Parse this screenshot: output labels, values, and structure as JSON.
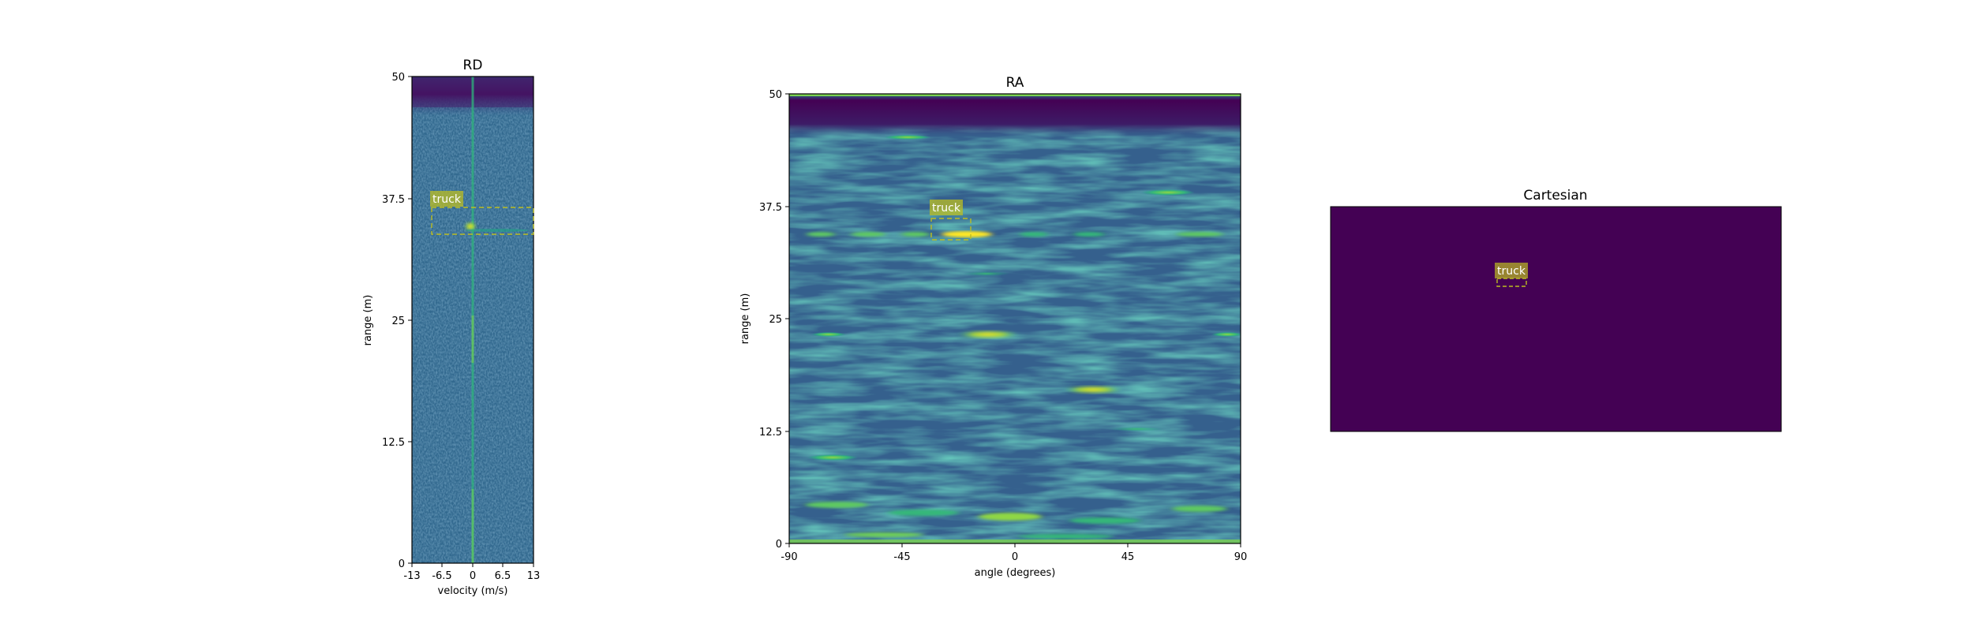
{
  "chart_data": [
    {
      "type": "heatmap",
      "title": "RD",
      "xlabel": "velocity (m/s)",
      "ylabel": "range (m)",
      "xlim": [
        -13,
        13
      ],
      "ylim": [
        0,
        50
      ],
      "xticks": [
        "-13",
        "-6.5",
        "0",
        "6.5",
        "13"
      ],
      "yticks": [
        "0",
        "12.5",
        "25",
        "37.5",
        "50"
      ],
      "colormap": "viridis",
      "annotations": [
        {
          "label": "truck",
          "x0": -8.8,
          "x1": 13,
          "y0": 33.5,
          "y1": 36.8
        }
      ]
    },
    {
      "type": "heatmap",
      "title": "RA",
      "xlabel": "angle (degrees)",
      "ylabel": "range (m)",
      "xlim": [
        -90,
        90
      ],
      "ylim": [
        0,
        50
      ],
      "xticks": [
        "-90",
        "-45",
        "0",
        "45",
        "90"
      ],
      "yticks": [
        "0",
        "12.5",
        "25",
        "37.5",
        "50"
      ],
      "colormap": "viridis",
      "annotations": [
        {
          "label": "truck",
          "x0": -34,
          "x1": -18,
          "y0": 33.8,
          "y1": 36.3
        }
      ]
    },
    {
      "type": "heatmap",
      "title": "Cartesian",
      "xlabel": "",
      "ylabel": "",
      "background_color": "#440154",
      "annotations": [
        {
          "label": "truck",
          "rx0": 0.369,
          "rx1": 0.434,
          "ry0": 0.32,
          "ry1": 0.355
        }
      ]
    }
  ],
  "colors": {
    "viridis_low": "#440154",
    "viridis_mid": "#31688e",
    "viridis_high": "#fde725",
    "annotation_box": "#bcbd22"
  }
}
